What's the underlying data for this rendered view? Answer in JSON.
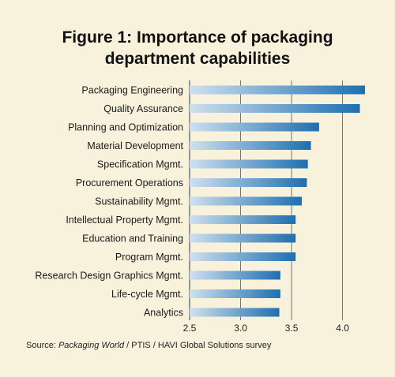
{
  "chart_data": {
    "type": "bar",
    "orientation": "horizontal",
    "title_lines": [
      "Figure 1: Importance of packaging",
      "department capabilities"
    ],
    "categories": [
      "Packaging Engineering",
      "Quality Assurance",
      "Planning and Optimization",
      "Material Development",
      "Specification Mgmt.",
      "Procurement Operations",
      "Sustainability Mgmt.",
      "Intellectual Property Mgmt.",
      "Education and Training",
      "Program Mgmt.",
      "Research Design Graphics Mgmt.",
      "Life-cycle Mgmt.",
      "Analytics"
    ],
    "values": [
      4.22,
      4.17,
      3.77,
      3.69,
      3.66,
      3.65,
      3.6,
      3.54,
      3.54,
      3.54,
      3.39,
      3.39,
      3.38
    ],
    "xlim": [
      2.5,
      4.22
    ],
    "x_ticks": [
      2.5,
      3.0,
      3.5,
      4.0
    ],
    "x_tick_labels": [
      "2.5",
      "3.0",
      "3.5",
      "4.0"
    ],
    "grid": "vertical",
    "legend": "none",
    "colors": {
      "bar_start": "#cfe0ef",
      "bar_end": "#1e6fb0",
      "background": "#f8f1dc",
      "grid": "#555555"
    }
  },
  "source": {
    "prefix": "Source: ",
    "publication": "Packaging World",
    "suffix": " / PTIS / HAVI Global Solutions survey"
  }
}
